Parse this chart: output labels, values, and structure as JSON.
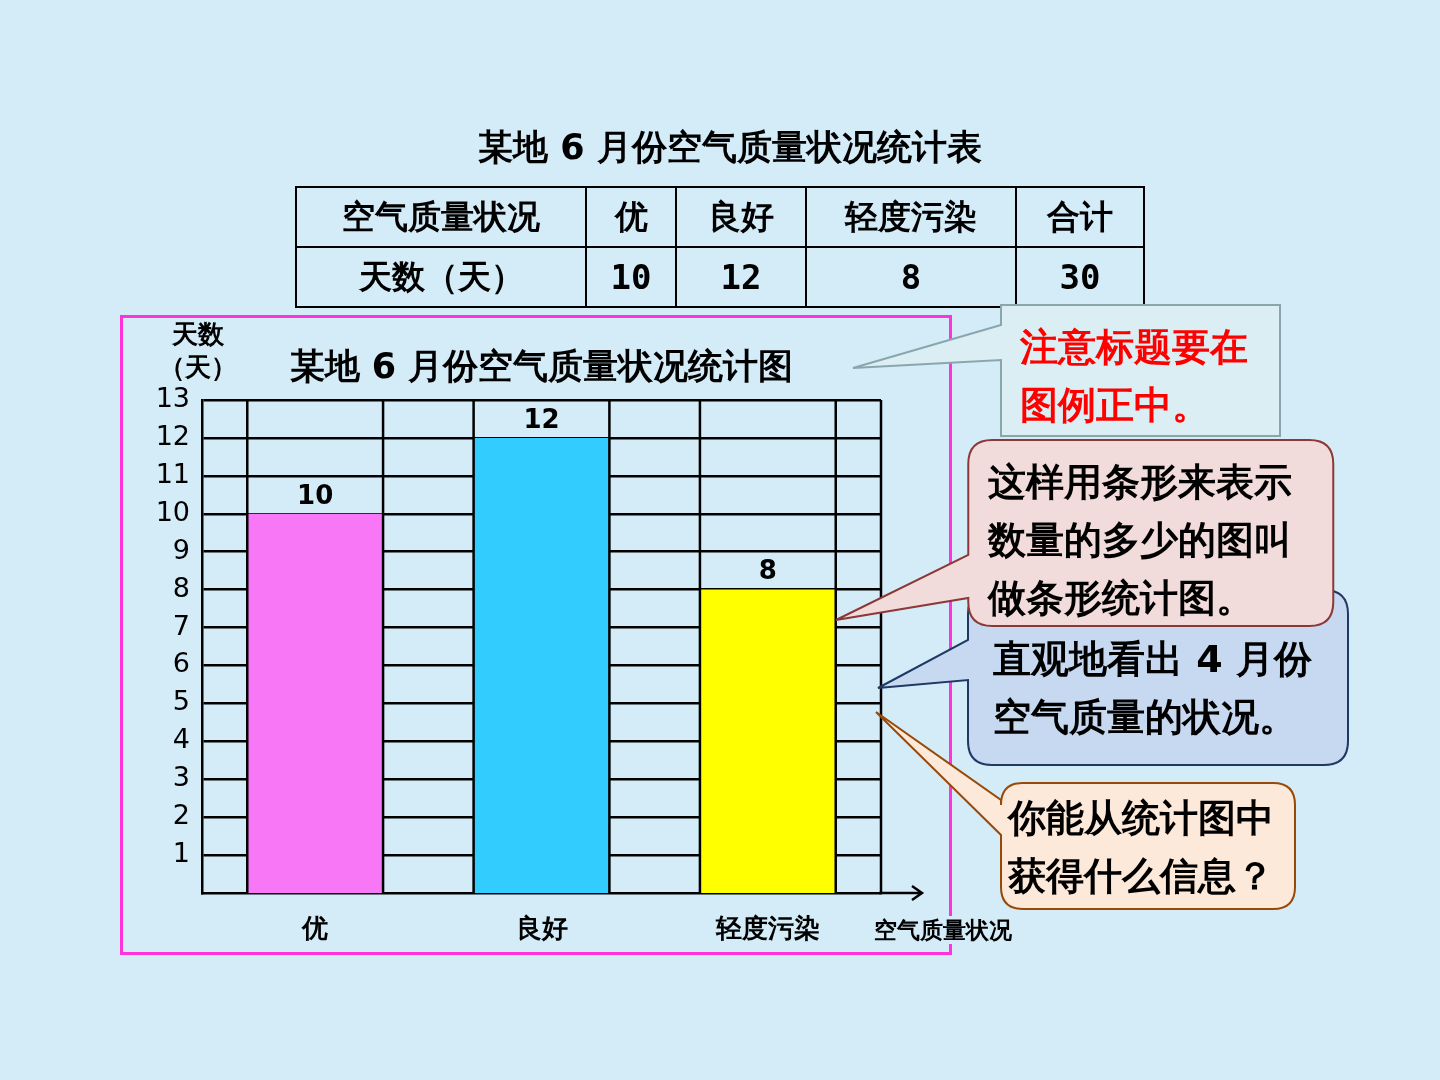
{
  "chart_data": {
    "type": "bar",
    "title": "某地 6 月份空气质量状况统计图",
    "xlabel": "空气质量状况",
    "ylabel": "天数（天）",
    "categories": [
      "优",
      "良好",
      "轻度污染"
    ],
    "values": [
      10,
      12,
      8
    ],
    "colors": [
      "#f777f7",
      "#33ccff",
      "#ffff00"
    ],
    "ylim": [
      0,
      13
    ],
    "yticks": [
      1,
      2,
      3,
      4,
      5,
      6,
      7,
      8,
      9,
      10,
      11,
      12,
      13
    ],
    "grid": true,
    "data_labels": true,
    "annotations": [
      "某地 6 月份空气质量状况统计表",
      "合计",
      "10",
      "12",
      "8",
      "30",
      "注意标题要在图例正中。",
      "这样用条形来表示数量的多少的图叫做条形统计图。",
      "直观地看出 4 月份空气质量的状况。",
      "你能从统计图中获得什么信息？"
    ]
  }
}
